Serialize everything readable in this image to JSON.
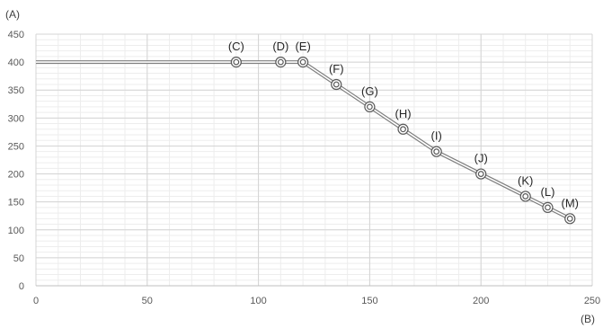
{
  "chart_data": {
    "type": "line",
    "title": "",
    "xlabel": "(B)",
    "ylabel": "(A)",
    "xlim": [
      0,
      250
    ],
    "ylim": [
      0,
      450
    ],
    "x_ticks": [
      0,
      50,
      100,
      150,
      200,
      250
    ],
    "y_ticks": [
      0,
      50,
      100,
      150,
      200,
      250,
      300,
      350,
      400,
      450
    ],
    "grid": true,
    "legend": "none",
    "series": [
      {
        "line_color": "#7f7f7f",
        "x": [
          0,
          90,
          110,
          120,
          135,
          150,
          165,
          180,
          200,
          220,
          230,
          240
        ],
        "y": [
          400,
          400,
          400,
          400,
          360,
          320,
          280,
          240,
          200,
          160,
          140,
          120
        ]
      }
    ],
    "markers": [
      {
        "label": "(C)",
        "x": 90,
        "y": 400
      },
      {
        "label": "(D)",
        "x": 110,
        "y": 400
      },
      {
        "label": "(E)",
        "x": 120,
        "y": 400
      },
      {
        "label": "(F)",
        "x": 135,
        "y": 360
      },
      {
        "label": "(G)",
        "x": 150,
        "y": 320
      },
      {
        "label": "(H)",
        "x": 165,
        "y": 280
      },
      {
        "label": "(I)",
        "x": 180,
        "y": 240
      },
      {
        "label": "(J)",
        "x": 200,
        "y": 200
      },
      {
        "label": "(K)",
        "x": 220,
        "y": 160
      },
      {
        "label": "(L)",
        "x": 230,
        "y": 140
      },
      {
        "label": "(M)",
        "x": 240,
        "y": 120
      }
    ]
  }
}
